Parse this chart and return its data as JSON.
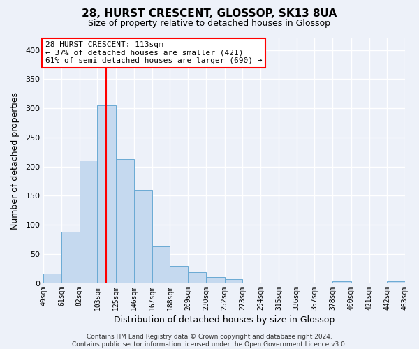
{
  "title": "28, HURST CRESCENT, GLOSSOP, SK13 8UA",
  "subtitle": "Size of property relative to detached houses in Glossop",
  "xlabel": "Distribution of detached houses by size in Glossop",
  "ylabel": "Number of detached properties",
  "bar_color": "#c5d9ef",
  "bar_edge_color": "#6aaad4",
  "background_color": "#edf1f9",
  "grid_color": "#ffffff",
  "red_line_x": 113,
  "annotation_title": "28 HURST CRESCENT: 113sqm",
  "annotation_line1": "← 37% of detached houses are smaller (421)",
  "annotation_line2": "61% of semi-detached houses are larger (690) →",
  "bin_edges": [
    40,
    61,
    82,
    103,
    125,
    146,
    167,
    188,
    209,
    230,
    252,
    273,
    294,
    315,
    336,
    357,
    378,
    400,
    421,
    442,
    463
  ],
  "bar_heights": [
    16,
    88,
    210,
    305,
    213,
    160,
    63,
    30,
    19,
    10,
    7,
    0,
    0,
    0,
    0,
    0,
    3,
    0,
    0,
    3
  ],
  "ylim": [
    0,
    420
  ],
  "yticks": [
    0,
    50,
    100,
    150,
    200,
    250,
    300,
    350,
    400
  ],
  "footer_line1": "Contains HM Land Registry data © Crown copyright and database right 2024.",
  "footer_line2": "Contains public sector information licensed under the Open Government Licence v3.0."
}
